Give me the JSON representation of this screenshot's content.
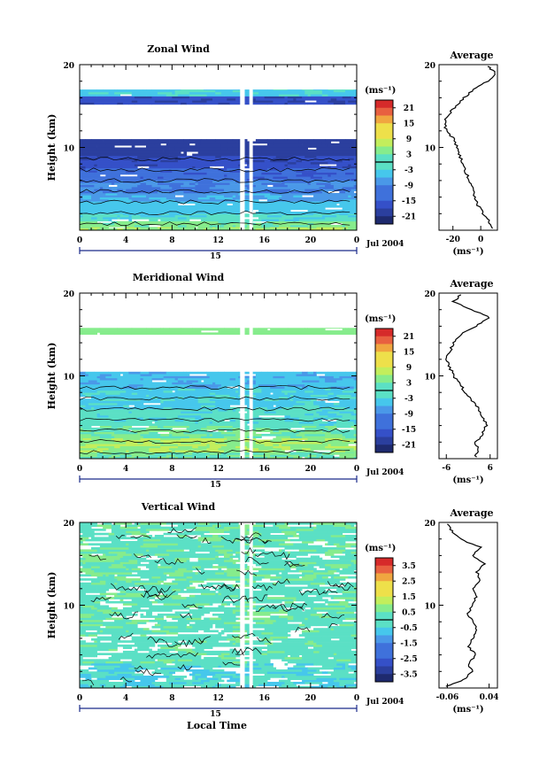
{
  "figure": {
    "xlabel": "Local Time"
  },
  "chart_data": [
    {
      "type": "heatmap",
      "title": "Zonal Wind",
      "ylabel": "Height (km)",
      "ylim": [
        0,
        20
      ],
      "yticks": [
        {
          "v": 10,
          "label": "10"
        },
        {
          "v": 20,
          "label": "20"
        }
      ],
      "xlim": [
        0,
        24
      ],
      "xticks": [
        "0",
        "4",
        "8",
        "12",
        "16",
        "20",
        "0"
      ],
      "date_label": "15",
      "month_label": "Jul 2004",
      "colorbar": {
        "unit": "(ms⁻¹)",
        "ticks": [
          "21",
          "15",
          "9",
          "3",
          "-3",
          "-9",
          "-15",
          "-21"
        ],
        "levels": [
          -24,
          24
        ]
      },
      "bands": [
        {
          "h0": 0,
          "h1": 0.4,
          "v": 6
        },
        {
          "h0": 0.4,
          "h1": 1.1,
          "v": 3
        },
        {
          "h0": 1.1,
          "h1": 2.0,
          "v": -1
        },
        {
          "h0": 2.0,
          "h1": 3.5,
          "v": -4
        },
        {
          "h0": 3.5,
          "h1": 4.5,
          "v": -7
        },
        {
          "h0": 4.5,
          "h1": 6.0,
          "v": -10
        },
        {
          "h0": 6.0,
          "h1": 7.5,
          "v": -13
        },
        {
          "h0": 7.5,
          "h1": 9.0,
          "v": -17
        },
        {
          "h0": 9.0,
          "h1": 11.0,
          "v": -20
        },
        {
          "h0": 11.0,
          "h1": 15.2,
          "v": null
        },
        {
          "h0": 15.2,
          "h1": 16.2,
          "v": -17
        },
        {
          "h0": 16.2,
          "h1": 17.0,
          "v": -3
        },
        {
          "h0": 17.0,
          "h1": 20,
          "v": null
        }
      ],
      "profile": {
        "title": "Average",
        "xlim": [
          -30,
          12
        ],
        "xticks": [
          {
            "v": -20,
            "label": "-20"
          },
          {
            "v": 0,
            "label": "0"
          }
        ],
        "xlabel": "(ms⁻¹)",
        "h": [
          0.2,
          1,
          2,
          3,
          4,
          5,
          6,
          7,
          8,
          9,
          10,
          11,
          12,
          13,
          14,
          15,
          16,
          17,
          18,
          19,
          19.8
        ],
        "v": [
          9,
          6,
          2,
          -2,
          -4,
          -6,
          -8,
          -11,
          -13,
          -15,
          -17,
          -19,
          -25,
          -26,
          -23,
          -18,
          -12,
          -5,
          5,
          11,
          5
        ]
      }
    },
    {
      "type": "heatmap",
      "title": "Meridional Wind",
      "ylabel": "Height (km)",
      "ylim": [
        0,
        20
      ],
      "yticks": [
        {
          "v": 10,
          "label": "10"
        },
        {
          "v": 20,
          "label": "20"
        }
      ],
      "xlim": [
        0,
        24
      ],
      "xticks": [
        "0",
        "4",
        "8",
        "12",
        "16",
        "20",
        "0"
      ],
      "date_label": "15",
      "month_label": "Jul 2004",
      "colorbar": {
        "unit": "(ms⁻¹)",
        "ticks": [
          "21",
          "15",
          "9",
          "3",
          "-3",
          "-9",
          "-15",
          "-21"
        ],
        "levels": [
          -24,
          24
        ]
      },
      "bands": [
        {
          "h0": 0,
          "h1": 0.8,
          "v": 2
        },
        {
          "h0": 0.8,
          "h1": 2.5,
          "v": 6
        },
        {
          "h0": 2.5,
          "h1": 4.0,
          "v": 2
        },
        {
          "h0": 4.0,
          "h1": 6.0,
          "v": -1
        },
        {
          "h0": 6.0,
          "h1": 8.5,
          "v": -3
        },
        {
          "h0": 8.5,
          "h1": 10.5,
          "v": -5
        },
        {
          "h0": 10.5,
          "h1": 15.0,
          "v": null
        },
        {
          "h0": 15.0,
          "h1": 15.8,
          "v": 4
        },
        {
          "h0": 15.8,
          "h1": 20,
          "v": null
        }
      ],
      "profile": {
        "title": "Average",
        "xlim": [
          -8,
          8
        ],
        "xticks": [
          {
            "v": -6,
            "label": "-6"
          },
          {
            "v": 6,
            "label": "6"
          }
        ],
        "xlabel": "(ms⁻¹)",
        "h": [
          0.2,
          1,
          2,
          3,
          4,
          5,
          6,
          7,
          8,
          9,
          10,
          11,
          12,
          13,
          14,
          15,
          16,
          17,
          18,
          19,
          19.8
        ],
        "v": [
          2,
          3,
          2,
          4,
          5,
          4,
          3,
          1,
          -1,
          -2,
          -4,
          -5,
          -6,
          -5,
          -4,
          -2,
          2,
          6,
          1,
          -4,
          -2
        ]
      }
    },
    {
      "type": "heatmap",
      "title": "Vertical Wind",
      "ylabel": "Height (km)",
      "ylim": [
        0,
        20
      ],
      "yticks": [
        {
          "v": 10,
          "label": "10"
        },
        {
          "v": 20,
          "label": "20"
        }
      ],
      "xlim": [
        0,
        24
      ],
      "xticks": [
        "0",
        "4",
        "8",
        "12",
        "16",
        "20",
        "0"
      ],
      "date_label": "15",
      "month_label": "Jul 2004",
      "colorbar": {
        "unit": "(ms⁻¹)",
        "ticks": [
          "3.5",
          "2.5",
          "1.5",
          "0.5",
          "-0.5",
          "-1.5",
          "-2.5",
          "-3.5"
        ],
        "levels": [
          -4,
          4
        ]
      },
      "bands": [
        {
          "h0": 0,
          "h1": 3,
          "v": -0.3
        },
        {
          "h0": 3,
          "h1": 8,
          "v": 0.1
        },
        {
          "h0": 8,
          "h1": 11,
          "v": 0.2
        },
        {
          "h0": 11,
          "h1": 13,
          "v": 0.1
        },
        {
          "h0": 13,
          "h1": 20,
          "v": 0.2
        }
      ],
      "profile": {
        "title": "Average",
        "xlim": [
          -0.08,
          0.06
        ],
        "xticks": [
          {
            "v": -0.06,
            "label": "-0.06"
          },
          {
            "v": 0.04,
            "label": "0.04"
          }
        ],
        "xlabel": "(ms⁻¹)",
        "h": [
          0.2,
          1,
          2,
          3,
          4,
          5,
          6,
          7,
          8,
          9,
          10,
          11,
          12,
          13,
          14,
          15,
          16,
          17,
          18,
          19,
          19.8
        ],
        "v": [
          -0.06,
          -0.02,
          0.0,
          -0.01,
          0.01,
          -0.01,
          0.0,
          0.01,
          0.0,
          -0.01,
          0.0,
          0.01,
          0.0,
          0.02,
          0.01,
          0.03,
          0.0,
          0.02,
          -0.03,
          -0.05,
          -0.06
        ]
      }
    }
  ],
  "colors": {
    "scale": [
      "#1e2a6e",
      "#2b3f9e",
      "#3550c8",
      "#3f71db",
      "#4a98e8",
      "#46c7ec",
      "#5be0c5",
      "#86ec8c",
      "#c3ee5c",
      "#eee04a",
      "#f0a640",
      "#e86040",
      "#d62a2a"
    ],
    "frame": "#000000",
    "axis_blue": "#1a2a8a"
  }
}
